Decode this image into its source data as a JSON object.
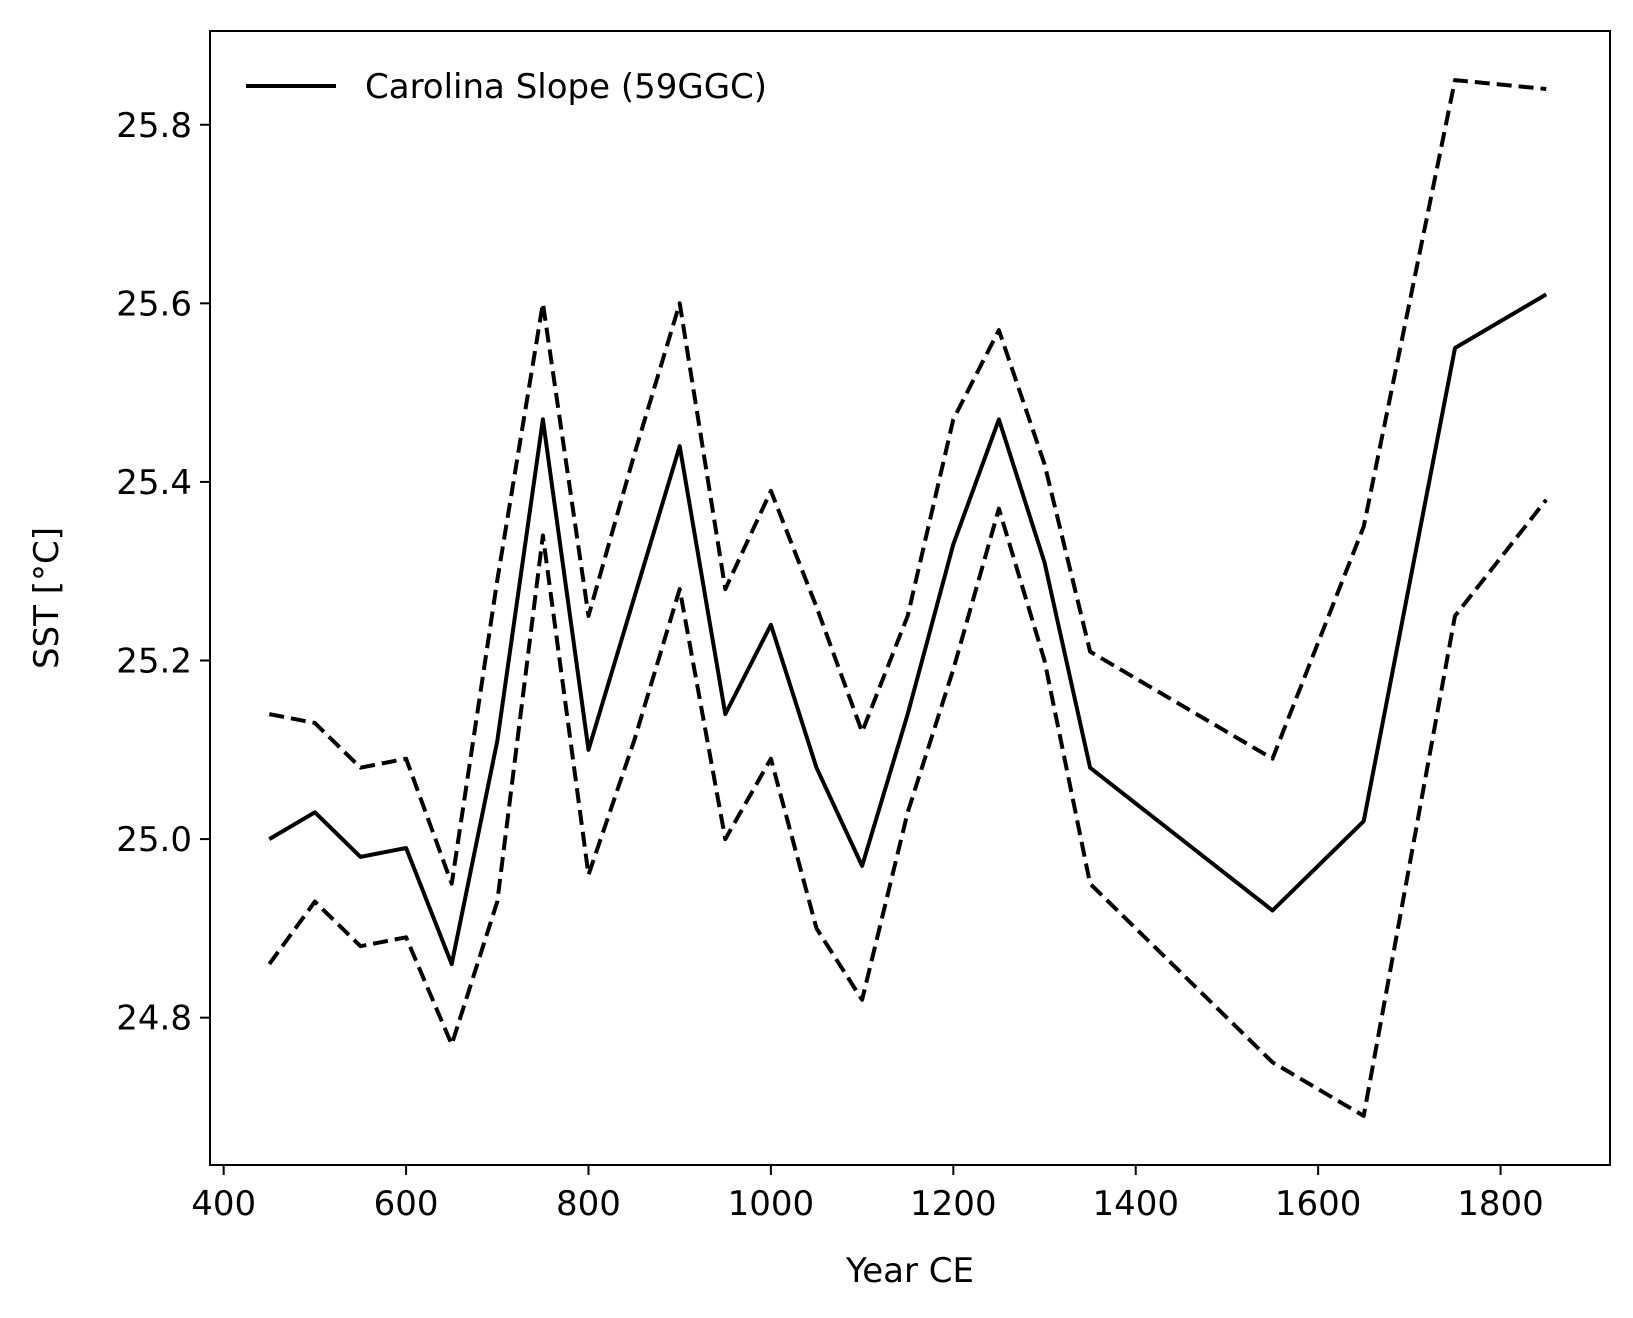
{
  "chart_data": {
    "type": "line",
    "title": "",
    "xlabel": "Year CE",
    "ylabel": "SST [°C]",
    "xlim": [
      385,
      1920
    ],
    "ylim": [
      24.635,
      25.905
    ],
    "xticks": [
      400,
      600,
      800,
      1000,
      1200,
      1400,
      1600,
      1800
    ],
    "xtick_labels": [
      "400",
      "600",
      "800",
      "1000",
      "1200",
      "1400",
      "1600",
      "1800"
    ],
    "yticks": [
      24.8,
      25.0,
      25.2,
      25.4,
      25.6,
      25.8
    ],
    "ytick_labels": [
      "24.8",
      "25.0",
      "25.2",
      "25.4",
      "25.6",
      "25.8"
    ],
    "grid": false,
    "legend": {
      "position": "top-left",
      "entries": [
        "Carolina Slope (59GGC)"
      ]
    },
    "color": "#000000",
    "x": [
      450,
      500,
      550,
      600,
      650,
      700,
      750,
      800,
      850,
      900,
      950,
      1000,
      1050,
      1100,
      1150,
      1200,
      1250,
      1300,
      1350,
      1550,
      1650,
      1750,
      1850
    ],
    "series": [
      {
        "name": "Carolina Slope (59GGC)",
        "style": "solid",
        "values": [
          25.0,
          25.03,
          24.98,
          24.99,
          24.86,
          25.11,
          25.47,
          25.1,
          25.27,
          25.44,
          25.14,
          25.24,
          25.08,
          24.97,
          25.14,
          25.33,
          25.47,
          25.31,
          25.08,
          24.92,
          25.02,
          25.55,
          25.61
        ]
      },
      {
        "style": "dashed",
        "values": [
          25.14,
          25.13,
          25.08,
          25.09,
          24.95,
          25.29,
          25.6,
          25.25,
          25.43,
          25.6,
          25.28,
          25.39,
          25.26,
          25.12,
          25.25,
          25.47,
          25.57,
          25.42,
          25.21,
          25.09,
          25.35,
          25.85,
          25.84
        ]
      },
      {
        "style": "dashed",
        "values": [
          24.86,
          24.93,
          24.88,
          24.89,
          24.77,
          24.93,
          25.34,
          24.96,
          25.11,
          25.28,
          25.0,
          25.09,
          24.9,
          24.82,
          25.03,
          25.19,
          25.37,
          25.2,
          24.95,
          24.75,
          24.69,
          25.25,
          25.38
        ]
      }
    ]
  }
}
